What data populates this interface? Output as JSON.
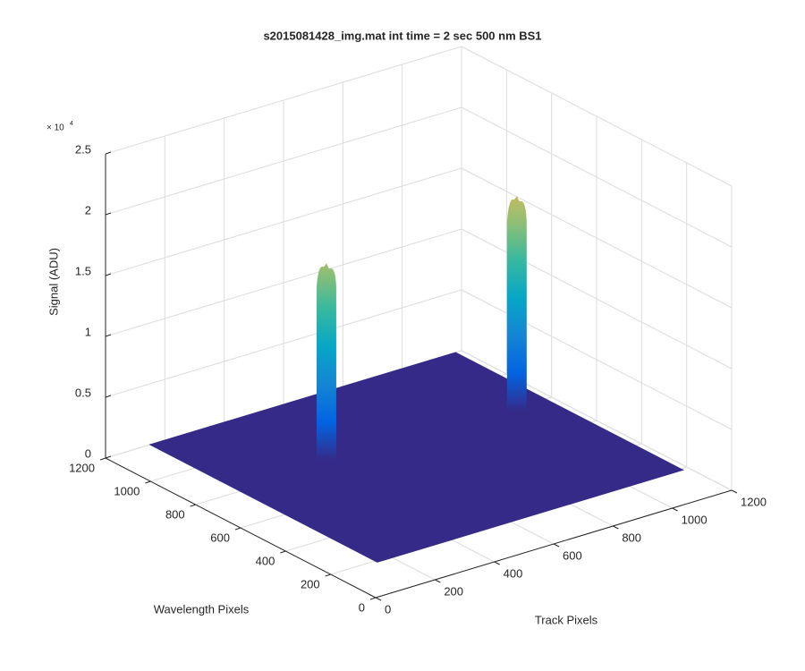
{
  "chart_data": {
    "type": "surface3d",
    "title": "s2015081428_img.mat int time = 2 sec  500 nm BS1",
    "xlabel": "Track Pixels",
    "ylabel": "Wavelength Pixels",
    "zlabel": "Signal (ADU)",
    "z_multiplier": {
      "base": "× 10",
      "exponent": "4"
    },
    "xlim": [
      0,
      1200
    ],
    "xticks": [
      0,
      200,
      400,
      600,
      800,
      1000,
      1200
    ],
    "ylim": [
      0,
      1200
    ],
    "yticks": [
      0,
      200,
      400,
      600,
      800,
      1000,
      1200
    ],
    "zlim": [
      0,
      25000
    ],
    "zticks": [
      {
        "value": 0,
        "label": "0"
      },
      {
        "value": 5000,
        "label": "0.5"
      },
      {
        "value": 10000,
        "label": "1"
      },
      {
        "value": 15000,
        "label": "1.5"
      },
      {
        "value": 20000,
        "label": "2"
      },
      {
        "value": 25000,
        "label": "2.5"
      }
    ],
    "grid": true,
    "colormap": [
      "#352a87",
      "#0363e1",
      "#1485d4",
      "#06a7c6",
      "#38b99e",
      "#92bf73",
      "#d9ba56",
      "#fcce2e",
      "#f9fb0e"
    ],
    "surface_extent": {
      "x": [
        150,
        1180
      ],
      "y": [
        190,
        1200
      ]
    },
    "peaks": [
      {
        "x": 460,
        "y": 825,
        "height": 16200
      },
      {
        "x": 1067,
        "y": 779,
        "height": 17700
      }
    ]
  }
}
